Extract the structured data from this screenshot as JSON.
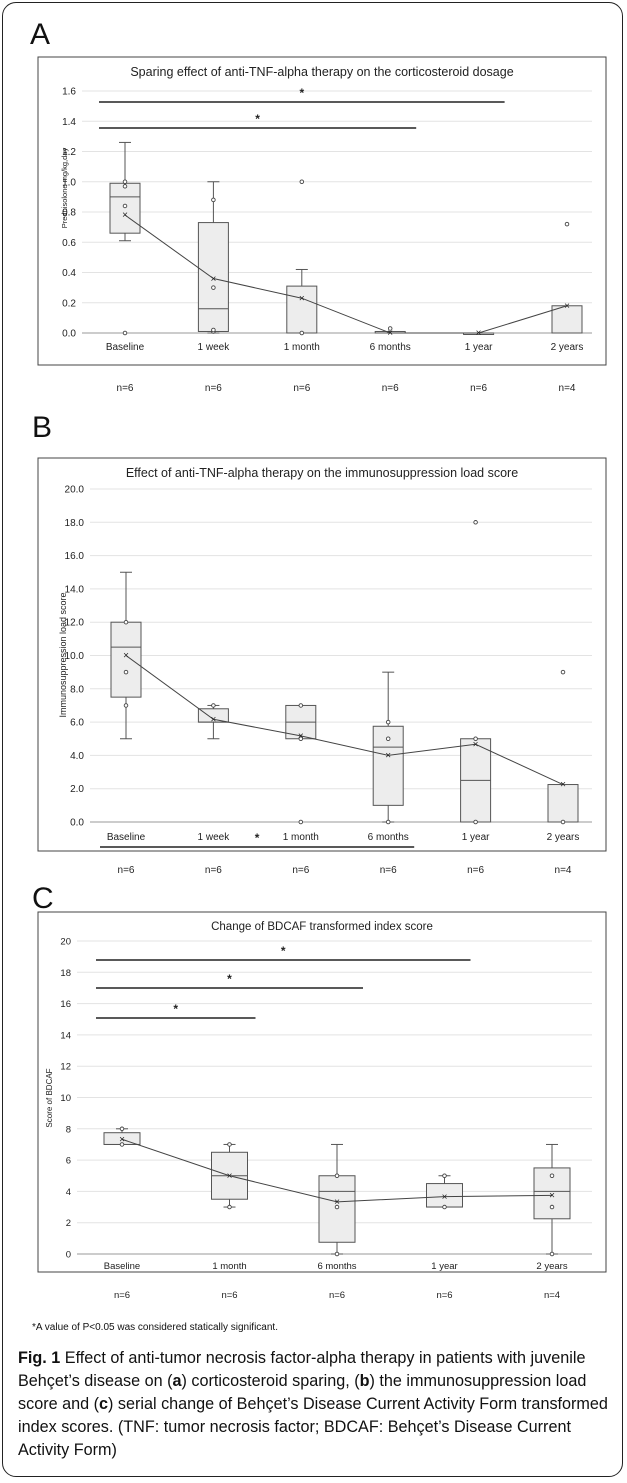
{
  "panels": {
    "a": "A",
    "b": "B",
    "c": "C"
  },
  "chart_data": [
    {
      "type": "box",
      "title": "Sparing effect of anti-TNF-alpha therapy on the corticosteroid dosage",
      "ylabel": "Prednisolone mg/kg,day",
      "xlabel": "",
      "ylim": [
        0,
        1.6
      ],
      "yticks": [
        "0.0",
        "0.2",
        "0.4",
        "0.6",
        "0.8",
        "1.0",
        "1.2",
        "1.4",
        "1.6"
      ],
      "categories": [
        "Baseline",
        "1 week",
        "1 month",
        "6 months",
        "1 year",
        "2 years"
      ],
      "n_labels": [
        "n=6",
        "n=6",
        "n=6",
        "n=6",
        "n=6",
        "n=4"
      ],
      "boxes": [
        {
          "q1": 0.66,
          "median": 0.9,
          "q3": 0.99,
          "whisker_low": 0.61,
          "whisker_high": 1.26,
          "mean": 0.78,
          "points": [
            0.0,
            0.84,
            0.97,
            1.0
          ]
        },
        {
          "q1": 0.01,
          "median": 0.16,
          "q3": 0.73,
          "whisker_low": 0.0,
          "whisker_high": 1.0,
          "mean": 0.36,
          "points": [
            0.01,
            0.02,
            0.3,
            0.88
          ]
        },
        {
          "q1": 0.0,
          "median": 0.0,
          "q3": 0.31,
          "whisker_low": 0.0,
          "whisker_high": 0.42,
          "mean": 0.23,
          "points": [
            0.0,
            1.0
          ]
        },
        {
          "q1": 0.0,
          "median": 0.0,
          "q3": 0.01,
          "whisker_low": 0.0,
          "whisker_high": 0.01,
          "mean": 0.0,
          "points": [
            0.03
          ]
        },
        {
          "q1": 0.0,
          "median": 0.0,
          "q3": 0.0,
          "whisker_low": 0.0,
          "whisker_high": 0.0,
          "mean": 0.0,
          "points": []
        },
        {
          "q1": 0.0,
          "median": 0.0,
          "q3": 0.18,
          "whisker_low": 0.0,
          "whisker_high": 0.18,
          "mean": 0.18,
          "points": [
            0.72
          ]
        }
      ],
      "significance": [
        {
          "from": 0,
          "to": 3,
          "label": "*"
        },
        {
          "from": 0,
          "to": 4,
          "label": "*"
        }
      ]
    },
    {
      "type": "box",
      "title": "Effect of anti-TNF-alpha therapy on the immunosuppression load score",
      "ylabel": "Immunosuppression load score",
      "xlabel": "",
      "ylim": [
        0,
        20
      ],
      "yticks": [
        "0.0",
        "2.0",
        "4.0",
        "6.0",
        "8.0",
        "10.0",
        "12.0",
        "14.0",
        "16.0",
        "18.0",
        "20.0"
      ],
      "categories": [
        "Baseline",
        "1 week",
        "1 month",
        "6 months",
        "1 year",
        "2 years"
      ],
      "n_labels": [
        "n=6",
        "n=6",
        "n=6",
        "n=6",
        "n=6",
        "n=4"
      ],
      "boxes": [
        {
          "q1": 7.5,
          "median": 10.5,
          "q3": 12.0,
          "whisker_low": 5.0,
          "whisker_high": 15.0,
          "mean": 10.0,
          "points": [
            7.0,
            9.0,
            12.0
          ]
        },
        {
          "q1": 6.0,
          "median": 6.0,
          "q3": 6.8,
          "whisker_low": 5.0,
          "whisker_high": 7.0,
          "mean": 6.17,
          "points": [
            7.0
          ]
        },
        {
          "q1": 5.0,
          "median": 6.0,
          "q3": 7.0,
          "whisker_low": 5.0,
          "whisker_high": 7.0,
          "mean": 5.17,
          "points": [
            0.0,
            5.0,
            7.0
          ]
        },
        {
          "q1": 1.0,
          "median": 4.5,
          "q3": 5.75,
          "whisker_low": 0.0,
          "whisker_high": 9.0,
          "mean": 4.0,
          "points": [
            0.0,
            5.0,
            6.0
          ]
        },
        {
          "q1": 0.0,
          "median": 2.5,
          "q3": 5.0,
          "whisker_low": 0.0,
          "whisker_high": 5.0,
          "mean": 4.67,
          "points": [
            0.0,
            5.0,
            18.0
          ]
        },
        {
          "q1": 0.0,
          "median": 0.0,
          "q3": 2.25,
          "whisker_low": 0.0,
          "whisker_high": 2.25,
          "mean": 2.25,
          "points": [
            0.0,
            9.0
          ]
        }
      ],
      "significance": [
        {
          "from": 0,
          "to": 3,
          "label": "*"
        }
      ]
    },
    {
      "type": "box",
      "title": "Change of BDCAF transformed index score",
      "ylabel": "Score of BDCAF",
      "xlabel": "",
      "ylim": [
        0,
        20
      ],
      "yticks": [
        "0",
        "2",
        "4",
        "6",
        "8",
        "10",
        "12",
        "14",
        "16",
        "18",
        "20"
      ],
      "categories": [
        "Baseline",
        "1 month",
        "6 months",
        "1 year",
        "2 years"
      ],
      "n_labels": [
        "n=6",
        "n=6",
        "n=6",
        "n=6",
        "n=4"
      ],
      "boxes": [
        {
          "q1": 7.0,
          "median": 7.0,
          "q3": 7.75,
          "whisker_low": 7.0,
          "whisker_high": 8.0,
          "mean": 7.33,
          "points": [
            7.0,
            8.0
          ]
        },
        {
          "q1": 3.5,
          "median": 5.0,
          "q3": 6.5,
          "whisker_low": 3.0,
          "whisker_high": 7.0,
          "mean": 5.0,
          "points": [
            3.0,
            7.0
          ]
        },
        {
          "q1": 0.75,
          "median": 4.0,
          "q3": 5.0,
          "whisker_low": 0.0,
          "whisker_high": 7.0,
          "mean": 3.33,
          "points": [
            0.0,
            3.0,
            5.0
          ]
        },
        {
          "q1": 3.0,
          "median": 3.0,
          "q3": 4.5,
          "whisker_low": 3.0,
          "whisker_high": 5.0,
          "mean": 3.67,
          "points": [
            3.0,
            5.0
          ]
        },
        {
          "q1": 2.25,
          "median": 4.0,
          "q3": 5.5,
          "whisker_low": 0.0,
          "whisker_high": 7.0,
          "mean": 3.75,
          "points": [
            0.0,
            3.0,
            5.0
          ]
        }
      ],
      "significance": [
        {
          "from": 0,
          "to": 1,
          "label": "*"
        },
        {
          "from": 0,
          "to": 2,
          "label": "*"
        },
        {
          "from": 0,
          "to": 3,
          "label": "*"
        }
      ]
    }
  ],
  "footnote": "*A value of P<0.05 was considered statically significant.",
  "caption": {
    "fig_label": "Fig. 1",
    "text_1": " Effect of anti-tumor necrosis factor-alpha therapy in patients with juvenile Behçet’s disease on (",
    "a": "a",
    "text_2": ") corticosteroid sparing, (",
    "b": "b",
    "text_3": ") the immunosuppression load score and (",
    "c": "c",
    "text_4": ") serial change of Behçet’s Disease Current Activity Form transformed index scores. (TNF: tumor necrosis factor; BDCAF: Behçet’s Disease Current Activity Form)"
  }
}
